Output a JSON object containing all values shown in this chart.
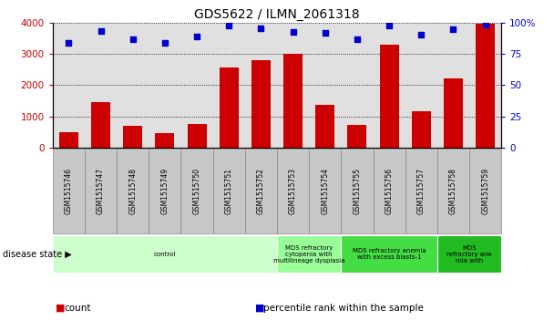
{
  "title": "GDS5622 / ILMN_2061318",
  "samples": [
    "GSM1515746",
    "GSM1515747",
    "GSM1515748",
    "GSM1515749",
    "GSM1515750",
    "GSM1515751",
    "GSM1515752",
    "GSM1515753",
    "GSM1515754",
    "GSM1515755",
    "GSM1515756",
    "GSM1515757",
    "GSM1515758",
    "GSM1515759"
  ],
  "counts": [
    500,
    1450,
    700,
    450,
    750,
    2580,
    2820,
    3020,
    1370,
    730,
    3300,
    1170,
    2220,
    3980
  ],
  "percentiles": [
    84,
    94,
    87,
    84,
    89,
    98,
    96,
    93,
    92,
    87,
    98,
    91,
    95,
    99
  ],
  "bar_color": "#cc0000",
  "dot_color": "#0000cc",
  "ylim_left": [
    0,
    4000
  ],
  "ylim_right": [
    0,
    100
  ],
  "yticks_left": [
    0,
    1000,
    2000,
    3000,
    4000
  ],
  "ytick_labels_left": [
    "0",
    "1000",
    "2000",
    "3000",
    "4000"
  ],
  "yticks_right": [
    0,
    25,
    50,
    75,
    100
  ],
  "ytick_labels_right": [
    "0",
    "25",
    "50",
    "75",
    "100%"
  ],
  "disease_groups": [
    {
      "label": "control",
      "start": 0,
      "end": 7,
      "color": "#ccffcc"
    },
    {
      "label": "MDS refractory\ncytopenia with\nmultilineage dysplasia",
      "start": 7,
      "end": 9,
      "color": "#99ff99"
    },
    {
      "label": "MDS refractory anemia\nwith excess blasts-1",
      "start": 9,
      "end": 12,
      "color": "#44dd44"
    },
    {
      "label": "MDS\nrefractory ane\nmia with",
      "start": 12,
      "end": 14,
      "color": "#22bb22"
    }
  ],
  "disease_state_label": "disease state",
  "legend_items": [
    {
      "label": "count",
      "color": "#cc0000"
    },
    {
      "label": "percentile rank within the sample",
      "color": "#0000cc"
    }
  ],
  "background_color": "#ffffff",
  "tick_label_color_left": "#cc0000",
  "tick_label_color_right": "#0000cc",
  "sample_box_color": "#c8c8c8",
  "sample_box_edge": "#888888"
}
